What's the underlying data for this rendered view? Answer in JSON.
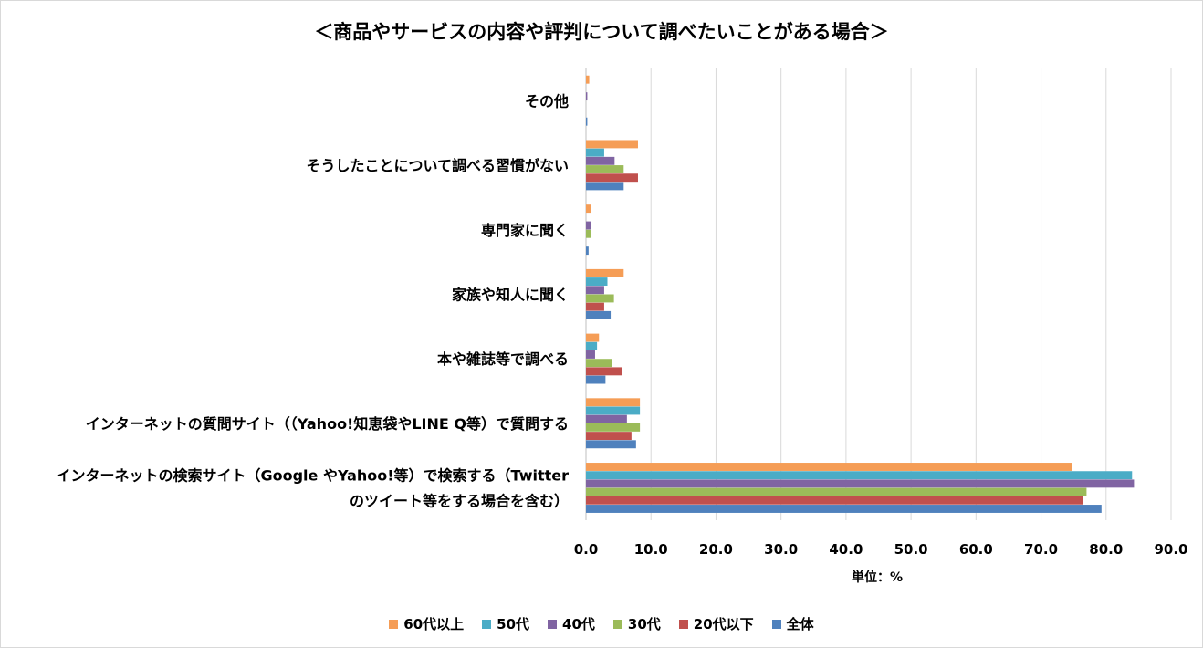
{
  "chart_data": {
    "type": "bar",
    "orientation": "horizontal",
    "title": "＜商品やサービスの内容や評判について調べたいことがある場合＞",
    "xlabel": "単位：%",
    "xlim": [
      0,
      90
    ],
    "xticks": [
      "0.0",
      "10.0",
      "20.0",
      "30.0",
      "40.0",
      "50.0",
      "60.0",
      "70.0",
      "80.0",
      "90.0"
    ],
    "grid": true,
    "legend_position": "bottom",
    "categories": [
      [
        "その他"
      ],
      [
        "そうしたことについて調べる習慣がない"
      ],
      [
        "専門家に聞く"
      ],
      [
        "家族や知人に聞く"
      ],
      [
        "本や雑誌等で調べる"
      ],
      [
        "インターネットの質問サイト（（Yahoo!知恵袋やLINE Q等）で質問する"
      ],
      [
        "インターネットの検索サイト（Google やYahoo!等）で検索する（Twitter",
        "のツイート等をする場合を含む）"
      ]
    ],
    "series": [
      {
        "name": "60代以上",
        "color": "#F59D56",
        "values": [
          0.5,
          8.0,
          0.8,
          5.8,
          2.0,
          8.3,
          74.8
        ]
      },
      {
        "name": "50代",
        "color": "#4BACC6",
        "values": [
          0.0,
          2.8,
          0.0,
          3.3,
          1.7,
          8.3,
          84.0
        ]
      },
      {
        "name": "40代",
        "color": "#8064A2",
        "values": [
          0.2,
          4.4,
          0.8,
          2.8,
          1.4,
          6.3,
          84.3
        ]
      },
      {
        "name": "30代",
        "color": "#9BBB59",
        "values": [
          0.0,
          5.8,
          0.7,
          4.3,
          4.0,
          8.3,
          77.0
        ]
      },
      {
        "name": "20代以下",
        "color": "#C0504D",
        "values": [
          0.0,
          8.0,
          0.0,
          2.8,
          5.6,
          7.0,
          76.5
        ]
      },
      {
        "name": "全体",
        "color": "#4F81BD",
        "values": [
          0.2,
          5.8,
          0.4,
          3.8,
          3.0,
          7.7,
          79.3
        ]
      }
    ]
  }
}
